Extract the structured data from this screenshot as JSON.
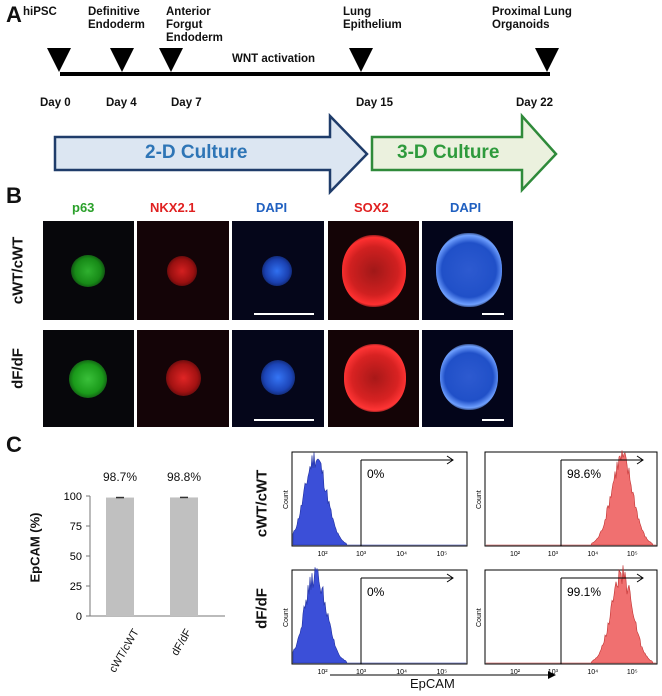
{
  "panel_a": {
    "letter": "A",
    "stages": [
      "hiPSC",
      "Definitive\nEndoderm",
      "Anterior\nForgut\nEndoderm",
      "Lung\nEpithelium",
      "Proximal Lung\nOrganoids"
    ],
    "wnt_label": "WNT activation",
    "days": [
      "Day 0",
      "Day 4",
      "Day 7",
      "Day 15",
      "Day 22"
    ],
    "culture_2d": "2-D Culture",
    "culture_3d": "3-D Culture",
    "colors": {
      "arrow_2d_fill": "#dce6f2",
      "arrow_2d_border": "#1f3c6a",
      "arrow_2d_text": "#2e75b6",
      "arrow_3d_fill": "#ebf1de",
      "arrow_3d_border": "#2f8a3a",
      "arrow_3d_text": "#2e9a3c"
    }
  },
  "panel_b": {
    "letter": "B",
    "columns": [
      {
        "label": "p63",
        "color": "#2aa02a"
      },
      {
        "label": "NKX2.1",
        "color": "#e02020"
      },
      {
        "label": "DAPI",
        "color": "#2060c0"
      },
      {
        "label": "SOX2",
        "color": "#e02020"
      },
      {
        "label": "DAPI",
        "color": "#2060c0"
      }
    ],
    "rows": [
      "cWT/cWT",
      "dF/dF"
    ]
  },
  "panel_c": {
    "letter": "C",
    "bar_chart": {
      "type": "bar",
      "categories": [
        "cWT/cWT",
        "dF/dF"
      ],
      "values": [
        98.7,
        98.8
      ],
      "value_labels": [
        "98.7%",
        "98.8%"
      ],
      "ylabel": "EpCAM (%)",
      "ylim": [
        0,
        100
      ],
      "yticks": [
        "0",
        "25",
        "50",
        "75",
        "100"
      ],
      "bar_color": "#c0c0c0"
    },
    "flow": {
      "row_labels": [
        "cWT/cWT",
        "dF/dF"
      ],
      "y_axis_label": "Count",
      "x_axis_label": "EpCAM",
      "x_ticks": [
        "10²",
        "10³",
        "10⁴",
        "10⁵"
      ],
      "gates": [
        [
          "0%",
          "98.6%"
        ],
        [
          "0%",
          "99.1%"
        ]
      ],
      "colors": {
        "control": "#3b4fd8",
        "stained": "#f07070"
      }
    }
  },
  "chart_data": [
    {
      "type": "bar",
      "title": "",
      "categories": [
        "cWT/cWT",
        "dF/dF"
      ],
      "values": [
        98.7,
        98.8
      ],
      "xlabel": "",
      "ylabel": "EpCAM (%)",
      "ylim": [
        0,
        100
      ]
    }
  ]
}
